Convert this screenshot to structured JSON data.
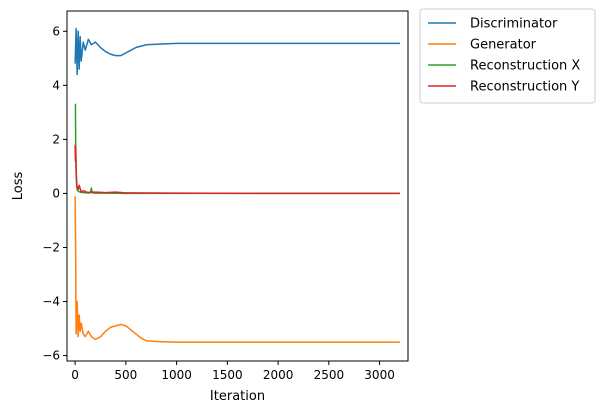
{
  "chart_data": {
    "type": "line",
    "title": "",
    "xlabel": "Iteration",
    "ylabel": "Loss",
    "xlim": [
      -80,
      3280
    ],
    "ylim": [
      -6.2,
      6.75
    ],
    "xticks": [
      0,
      500,
      1000,
      1500,
      2000,
      2500,
      3000
    ],
    "yticks": [
      -6,
      -4,
      -2,
      0,
      2,
      4,
      6
    ],
    "xtick_labels": [
      "0",
      "500",
      "1000",
      "1500",
      "2000",
      "2500",
      "3000"
    ],
    "ytick_labels": [
      "−6",
      "−4",
      "−2",
      "0",
      "2",
      "4",
      "6"
    ],
    "grid": false,
    "legend_position": "outside-top-right",
    "series": [
      {
        "name": "Discriminator",
        "color": "#1f77b4",
        "x": [
          0,
          10,
          20,
          30,
          40,
          50,
          60,
          80,
          100,
          130,
          160,
          200,
          250,
          300,
          350,
          400,
          450,
          500,
          550,
          600,
          650,
          700,
          800,
          1000,
          1200,
          1500,
          2000,
          2500,
          3000,
          3200
        ],
        "y": [
          4.8,
          6.1,
          4.4,
          6.0,
          4.6,
          5.8,
          4.9,
          5.6,
          5.3,
          5.7,
          5.5,
          5.6,
          5.4,
          5.25,
          5.15,
          5.1,
          5.1,
          5.2,
          5.3,
          5.4,
          5.45,
          5.5,
          5.52,
          5.55,
          5.55,
          5.55,
          5.55,
          5.55,
          5.55,
          5.55
        ]
      },
      {
        "name": "Generator",
        "color": "#ff7f0e",
        "x": [
          0,
          5,
          10,
          20,
          30,
          40,
          50,
          60,
          80,
          100,
          130,
          160,
          200,
          250,
          300,
          350,
          400,
          450,
          500,
          550,
          600,
          650,
          700,
          800,
          1000,
          1200,
          1500,
          2000,
          2500,
          3000,
          3200
        ],
        "y": [
          -0.1,
          -2.0,
          -5.2,
          -4.0,
          -5.3,
          -4.5,
          -5.1,
          -4.8,
          -5.2,
          -5.3,
          -5.1,
          -5.3,
          -5.4,
          -5.3,
          -5.1,
          -4.95,
          -4.9,
          -4.85,
          -4.9,
          -5.05,
          -5.2,
          -5.35,
          -5.45,
          -5.48,
          -5.5,
          -5.5,
          -5.5,
          -5.5,
          -5.5,
          -5.5,
          -5.5
        ]
      },
      {
        "name": "Reconstruction X",
        "color": "#2ca02c",
        "x": [
          0,
          3,
          6,
          10,
          15,
          20,
          30,
          50,
          80,
          120,
          150,
          160,
          170,
          200,
          300,
          500,
          1000,
          2000,
          3000,
          3200
        ],
        "y": [
          3.3,
          3.3,
          1.6,
          0.8,
          0.3,
          0.15,
          0.08,
          0.05,
          0.03,
          0.02,
          0.02,
          0.2,
          0.02,
          0.01,
          0.01,
          0.0,
          0.0,
          0.0,
          0.0,
          0.0
        ]
      },
      {
        "name": "Reconstruction Y",
        "color": "#d62728",
        "x": [
          0,
          3,
          6,
          10,
          15,
          20,
          30,
          40,
          60,
          80,
          120,
          200,
          300,
          400,
          500,
          1000,
          2000,
          3000,
          3200
        ],
        "y": [
          1.8,
          1.2,
          1.7,
          0.9,
          0.4,
          0.25,
          0.15,
          0.3,
          0.05,
          0.1,
          0.04,
          0.05,
          0.03,
          0.05,
          0.02,
          0.01,
          0.0,
          0.0,
          0.0
        ]
      }
    ]
  }
}
